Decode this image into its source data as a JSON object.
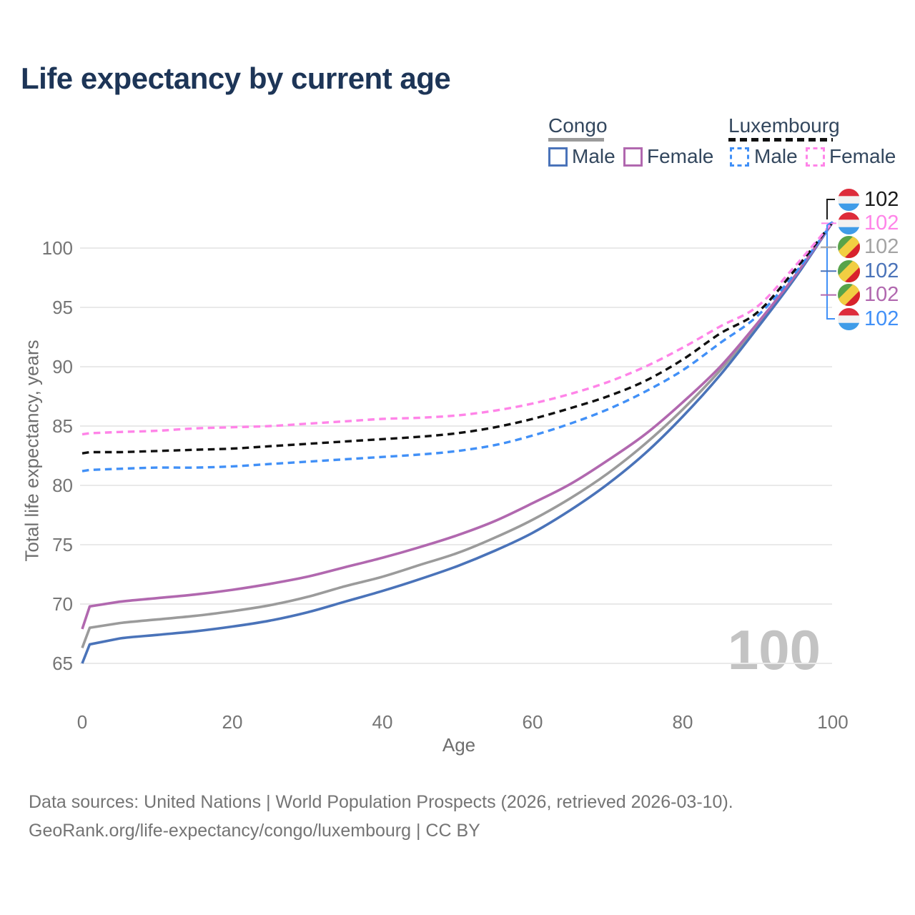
{
  "title": "Life expectancy by current age",
  "legend": {
    "congo": {
      "label": "Congo",
      "male_label": "Male",
      "female_label": "Female",
      "male_color": "#4a73b9",
      "female_color": "#b168af",
      "line_color": "#9b9b9b",
      "line_style": "solid"
    },
    "luxembourg": {
      "label": "Luxembourg",
      "male_label": "Male",
      "female_label": "Female",
      "male_color": "#4190f7",
      "female_color": "#ff84e8",
      "line_color": "#111111",
      "line_style": "dashed"
    }
  },
  "chart_data": {
    "type": "line",
    "title": "Life expectancy by current age",
    "xlabel": "Age",
    "ylabel": "Total life expectancy, years",
    "xlim": [
      0,
      100
    ],
    "ylim": [
      63.5,
      103
    ],
    "xticks": [
      0,
      20,
      40,
      60,
      80,
      100
    ],
    "yticks": [
      65,
      70,
      75,
      80,
      85,
      90,
      95,
      100
    ],
    "grid": "horizontal",
    "legend_position": "top-right",
    "x": [
      0,
      1,
      5,
      10,
      15,
      20,
      25,
      30,
      35,
      40,
      45,
      50,
      55,
      60,
      65,
      70,
      75,
      80,
      85,
      90,
      95,
      100
    ],
    "series": [
      {
        "name": "Congo",
        "country": "congo",
        "sex": "both",
        "style": "solid",
        "color": "#9b9b9b",
        "values": [
          66.3,
          68.0,
          68.4,
          68.7,
          69.0,
          69.4,
          69.9,
          70.6,
          71.5,
          72.3,
          73.3,
          74.3,
          75.6,
          77.1,
          78.9,
          81.0,
          83.5,
          86.4,
          89.7,
          93.5,
          97.6,
          102.2
        ]
      },
      {
        "name": "Congo Male",
        "country": "congo",
        "sex": "male",
        "style": "solid",
        "color": "#4a73b9",
        "values": [
          65.0,
          66.6,
          67.1,
          67.4,
          67.7,
          68.1,
          68.6,
          69.3,
          70.2,
          71.1,
          72.1,
          73.2,
          74.5,
          76.0,
          77.9,
          80.1,
          82.7,
          85.8,
          89.3,
          93.3,
          97.5,
          102.2
        ]
      },
      {
        "name": "Congo Female",
        "country": "congo",
        "sex": "female",
        "style": "solid",
        "color": "#b168af",
        "values": [
          67.9,
          69.8,
          70.2,
          70.5,
          70.8,
          71.2,
          71.7,
          72.3,
          73.1,
          73.9,
          74.8,
          75.8,
          77.0,
          78.5,
          80.1,
          82.1,
          84.3,
          87.0,
          90.0,
          93.7,
          97.7,
          102.2
        ]
      },
      {
        "name": "Luxembourg Male",
        "country": "luxembourg",
        "sex": "male",
        "style": "dashed",
        "color": "#4190f7",
        "values": [
          81.2,
          81.3,
          81.4,
          81.5,
          81.5,
          81.6,
          81.8,
          82.0,
          82.2,
          82.4,
          82.6,
          82.9,
          83.4,
          84.2,
          85.2,
          86.4,
          87.9,
          89.7,
          92.0,
          94.3,
          97.9,
          102.2
        ]
      },
      {
        "name": "Luxembourg",
        "country": "luxembourg",
        "sex": "both",
        "style": "dashed",
        "color": "#111111",
        "values": [
          82.7,
          82.8,
          82.8,
          82.9,
          83.0,
          83.1,
          83.3,
          83.5,
          83.7,
          83.9,
          84.1,
          84.4,
          84.9,
          85.6,
          86.5,
          87.5,
          88.8,
          90.6,
          92.8,
          94.6,
          98.2,
          102.2
        ]
      },
      {
        "name": "Luxembourg Female",
        "country": "luxembourg",
        "sex": "female",
        "style": "dashed",
        "color": "#ff84e8",
        "values": [
          84.3,
          84.4,
          84.5,
          84.6,
          84.8,
          84.9,
          85.0,
          85.2,
          85.4,
          85.6,
          85.7,
          85.9,
          86.3,
          86.9,
          87.7,
          88.7,
          90.0,
          91.6,
          93.4,
          95.1,
          98.5,
          102.2
        ]
      }
    ],
    "end_labels": [
      {
        "label": "102",
        "series": "Luxembourg",
        "flag": "luxembourg",
        "color": "#1a1a1a"
      },
      {
        "label": "102",
        "series": "Luxembourg Female",
        "flag": "luxembourg",
        "color": "#ff84e8"
      },
      {
        "label": "102",
        "series": "Congo",
        "flag": "congo",
        "color": "#a3a3a3"
      },
      {
        "label": "102",
        "series": "Congo Male",
        "flag": "congo",
        "color": "#4a73b9"
      },
      {
        "label": "102",
        "series": "Congo Female",
        "flag": "congo",
        "color": "#b168af"
      },
      {
        "label": "102",
        "series": "Luxembourg Male",
        "flag": "luxembourg",
        "color": "#4190f7"
      }
    ]
  },
  "flag_colors": {
    "luxembourg": {
      "red": "#dd2c3b",
      "white": "#f2f2f2",
      "blue": "#3f9ce8"
    },
    "congo": {
      "green": "#58a349",
      "yellow": "#f2ce42",
      "red": "#d8222c"
    }
  },
  "watermark": "100",
  "footer": {
    "line1": "Data sources: United Nations | World Population Prospects (2026, retrieved 2026-03-10).",
    "line2": "GeoRank.org/life-expectancy/congo/luxembourg | CC BY"
  }
}
